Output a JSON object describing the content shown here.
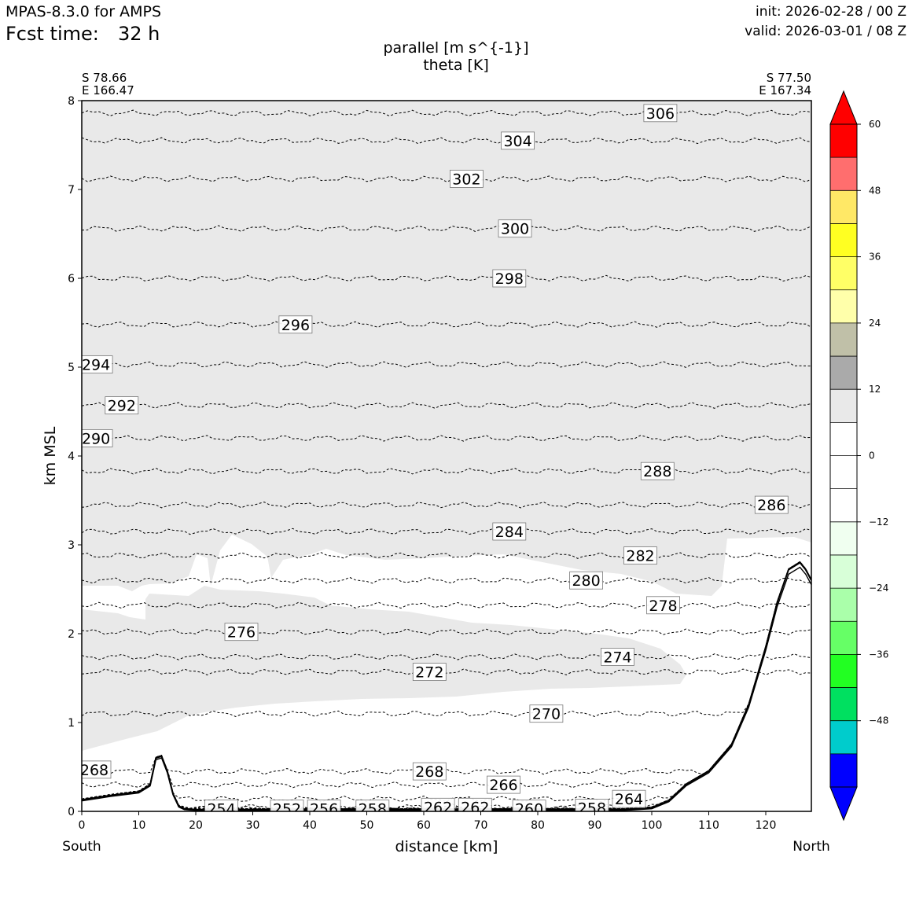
{
  "header": {
    "model": "MPAS-8.3.0 for AMPS",
    "fcst_label": "Fcst time:",
    "fcst_value": "32 h",
    "init": "init: 2026-02-28 / 00 Z",
    "valid": "valid: 2026-03-01 / 08 Z"
  },
  "chart_data": {
    "type": "cross-section",
    "title_line1": "parallel [m s^{-1}]",
    "title_line2": "theta [K]",
    "xlabel": "distance [km]",
    "ylabel": "km MSL",
    "xlim": [
      0,
      128
    ],
    "ylim": [
      0,
      8
    ],
    "x_ticks": [
      0,
      10,
      20,
      30,
      40,
      50,
      60,
      70,
      80,
      90,
      100,
      110,
      120
    ],
    "y_ticks": [
      0,
      1,
      2,
      3,
      4,
      5,
      6,
      7,
      8
    ],
    "start_point": {
      "lat": "S 78.66",
      "lon": "E 166.47",
      "end_label": "South"
    },
    "end_point": {
      "lat": "S 77.50",
      "lon": "E 167.34",
      "end_label": "North"
    },
    "fill_color": "#e9e9e9",
    "terrain": [
      [
        0,
        0.13
      ],
      [
        5,
        0.18
      ],
      [
        10,
        0.22
      ],
      [
        12,
        0.3
      ],
      [
        13,
        0.6
      ],
      [
        14,
        0.62
      ],
      [
        15,
        0.45
      ],
      [
        16,
        0.2
      ],
      [
        17,
        0.06
      ],
      [
        18,
        0.03
      ],
      [
        20,
        0.02
      ],
      [
        40,
        0.02
      ],
      [
        60,
        0.02
      ],
      [
        80,
        0.02
      ],
      [
        95,
        0.02
      ],
      [
        100,
        0.04
      ],
      [
        103,
        0.12
      ],
      [
        106,
        0.3
      ],
      [
        110,
        0.45
      ],
      [
        114,
        0.75
      ],
      [
        117,
        1.2
      ],
      [
        120,
        1.85
      ],
      [
        122,
        2.35
      ],
      [
        124,
        2.72
      ],
      [
        126,
        2.8
      ],
      [
        127,
        2.72
      ],
      [
        128,
        2.6
      ]
    ],
    "isentropes": [
      {
        "theta": 306,
        "base": 7.86,
        "label_x": 101.5
      },
      {
        "theta": 304,
        "base": 7.55,
        "label_x": 76.5
      },
      {
        "theta": 302,
        "base": 7.12,
        "label_x": 67.5
      },
      {
        "theta": 300,
        "base": 6.56,
        "label_x": 76
      },
      {
        "theta": 298,
        "base": 6.0,
        "label_x": 75
      },
      {
        "theta": 296,
        "base": 5.48,
        "label_x": 37.5
      },
      {
        "theta": 294,
        "base": 5.03,
        "label_x": 2.5
      },
      {
        "theta": 292,
        "base": 4.57,
        "label_x": 7
      },
      {
        "theta": 290,
        "base": 4.2,
        "label_x": 2.5
      },
      {
        "theta": 288,
        "base": 3.83,
        "label_x": 101
      },
      {
        "theta": 286,
        "base": 3.45,
        "label_x": 121
      },
      {
        "theta": 284,
        "base": 3.15,
        "label_x": 75
      },
      {
        "theta": 282,
        "base": 2.88,
        "label_x": 98
      },
      {
        "theta": 280,
        "base": 2.6,
        "label_x": 88.5
      },
      {
        "theta": 278,
        "base": 2.32,
        "label_x": 102
      },
      {
        "theta": 276,
        "base": 2.02,
        "label_x": 28
      },
      {
        "theta": 274,
        "base": 1.74,
        "label_x": 94
      },
      {
        "theta": 272,
        "base": 1.57,
        "label_x": 61
      },
      {
        "theta": 270,
        "base": 1.1,
        "label_x": 81.5
      },
      {
        "theta": 268,
        "base": 0.45,
        "label_x": 61
      },
      {
        "theta": 266,
        "base": 0.3,
        "label_x": 74
      },
      {
        "theta": 264,
        "base": 0.14,
        "label_x": 96
      },
      {
        "theta": 262,
        "base": 0.05,
        "label_x": 69
      },
      {
        "theta": 260,
        "base": 0.03,
        "label_x": 78.5
      },
      {
        "theta": 258,
        "base": 0.02,
        "label_x": 51
      },
      {
        "theta": 256,
        "base": 0.02,
        "label_x": 42.5
      },
      {
        "theta": 254,
        "base": 0.01,
        "label_x": 24.5
      },
      {
        "theta": 252,
        "base": 0.01,
        "label_x": 36
      }
    ],
    "extra_labels": [
      {
        "text": "268",
        "x": 2.2,
        "y": 0.47
      },
      {
        "text": "262",
        "x": 62.5,
        "y": 0.05
      },
      {
        "text": "258",
        "x": 89.5,
        "y": 0.04
      }
    ],
    "colorbar": {
      "bounds": [
        -60,
        -54,
        -48,
        -42,
        -36,
        -30,
        -24,
        -18,
        -12,
        -6,
        0,
        6,
        12,
        18,
        24,
        30,
        36,
        42,
        48,
        54,
        60
      ],
      "colors": [
        "#0000ff",
        "#00cccc",
        "#00e060",
        "#22ff22",
        "#66ff66",
        "#aaffaa",
        "#d8ffd8",
        "#f0fff0",
        "#ffffff",
        "#ffffff",
        "#ffffff",
        "#e9e9e9",
        "#aaaaaa",
        "#c0c0a8",
        "#ffffaa",
        "#ffff66",
        "#ffff22",
        "#ffe866",
        "#ff6e6e",
        "#ff0000"
      ],
      "under_color": "#0000ff",
      "over_color": "#ff0000",
      "tick_labels": [
        "60",
        "48",
        "36",
        "24",
        "12",
        "0",
        "−12",
        "−24",
        "−36",
        "−48"
      ],
      "tick_values": [
        60,
        48,
        36,
        24,
        12,
        0,
        -12,
        -24,
        -36,
        -48
      ]
    }
  }
}
